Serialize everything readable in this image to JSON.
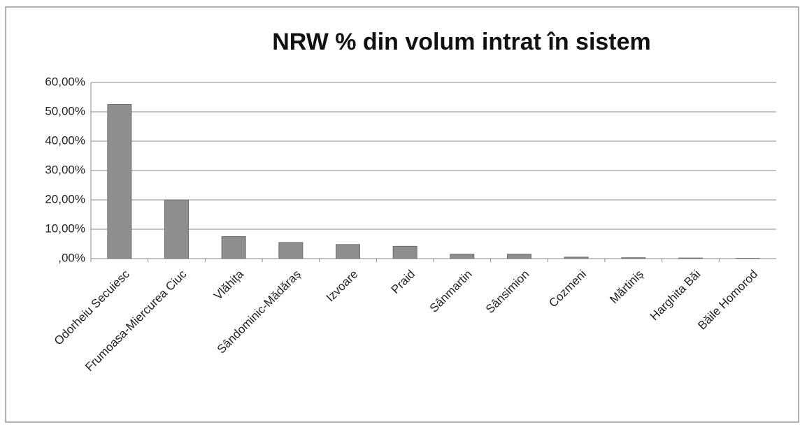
{
  "chart_data": {
    "type": "bar",
    "title": "NRW % din volum intrat în sistem",
    "categories": [
      "Odorheiu Secuiesc",
      "Frumoasa-Miercurea Ciuc",
      "Vlăhița",
      "Sândominic-Mădăraș",
      "Izvoare",
      "Praid",
      "Sânmartin",
      "Sânsimion",
      "Cozmeni",
      "Mărtiniș",
      "Harghita Băi",
      "Băile Homorod"
    ],
    "values": [
      52.5,
      20,
      7.5,
      5.5,
      4.8,
      4.2,
      1.5,
      1.5,
      0.5,
      0.3,
      0.2,
      0.1
    ],
    "color": "#8e8e8e",
    "ylim": [
      0,
      60
    ],
    "yticks": [
      {
        "value": 0,
        "label": ",00%"
      },
      {
        "value": 10,
        "label": "10,00%"
      },
      {
        "value": 20,
        "label": "20,00%"
      },
      {
        "value": 30,
        "label": "30,00%"
      },
      {
        "value": 40,
        "label": "40,00%"
      },
      {
        "value": 50,
        "label": "50,00%"
      },
      {
        "value": 60,
        "label": "60,00%"
      }
    ],
    "grid": true
  }
}
